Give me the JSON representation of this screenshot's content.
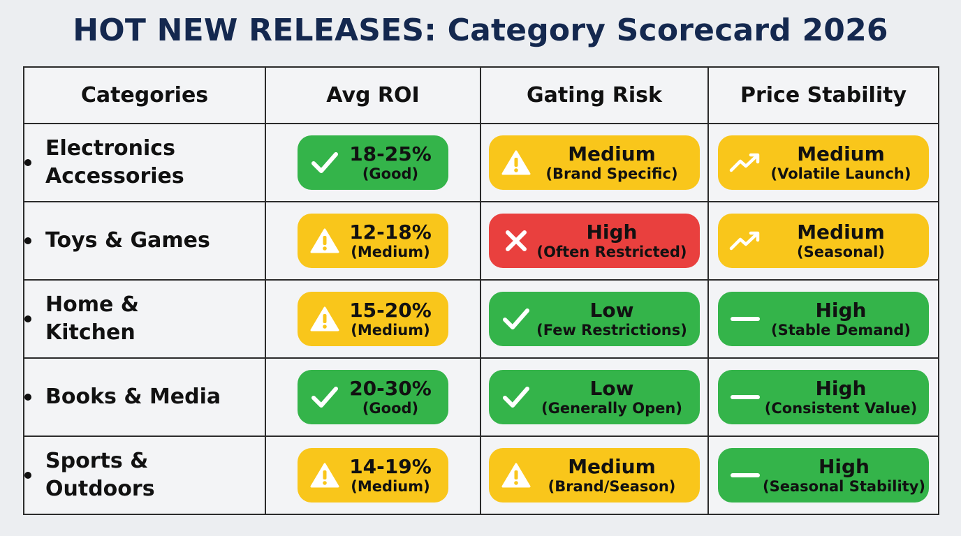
{
  "title": "HOT NEW RELEASES: Category Scorecard 2026",
  "colors": {
    "title": "#14284f",
    "good": "#34b44a",
    "medium": "#f9c61b",
    "high_risk": "#e9403e",
    "border": "#2b2b2b"
  },
  "chart_data": {
    "type": "table",
    "title": "HOT NEW RELEASES: Category Scorecard 2026",
    "columns": [
      "Categories",
      "Avg ROI",
      "Gating Risk",
      "Price Stability"
    ],
    "rows": [
      {
        "category": "Electronics Accessories",
        "category_lines": [
          "Electronics",
          "Accessories"
        ],
        "roi": {
          "value": "18-25%",
          "note": "(Good)",
          "status": "green",
          "icon": "check-icon"
        },
        "gating": {
          "value": "Medium",
          "note": "(Brand Specific)",
          "status": "yellow",
          "icon": "warning-icon"
        },
        "price": {
          "value": "Medium",
          "note": "(Volatile Launch)",
          "status": "yellow",
          "icon": "trend-up-icon"
        }
      },
      {
        "category": "Toys & Games",
        "category_lines": [
          "Toys & Games"
        ],
        "roi": {
          "value": "12-18%",
          "note": "(Medium)",
          "status": "yellow",
          "icon": "warning-icon"
        },
        "gating": {
          "value": "High",
          "note": "(Often Restricted)",
          "status": "red",
          "icon": "x-icon"
        },
        "price": {
          "value": "Medium",
          "note": "(Seasonal)",
          "status": "yellow",
          "icon": "trend-up-icon"
        }
      },
      {
        "category": "Home & Kitchen",
        "category_lines": [
          "Home &",
          "Kitchen"
        ],
        "roi": {
          "value": "15-20%",
          "note": "(Medium)",
          "status": "yellow",
          "icon": "warning-icon"
        },
        "gating": {
          "value": "Low",
          "note": "(Few Restrictions)",
          "status": "green",
          "icon": "check-icon"
        },
        "price": {
          "value": "High",
          "note": "(Stable Demand)",
          "status": "green",
          "icon": "dash-icon"
        }
      },
      {
        "category": "Books & Media",
        "category_lines": [
          "Books & Media"
        ],
        "roi": {
          "value": "20-30%",
          "note": "(Good)",
          "status": "green",
          "icon": "check-icon"
        },
        "gating": {
          "value": "Low",
          "note": "(Generally Open)",
          "status": "green",
          "icon": "check-icon"
        },
        "price": {
          "value": "High",
          "note": "(Consistent Value)",
          "status": "green",
          "icon": "dash-icon"
        }
      },
      {
        "category": "Sports & Outdoors",
        "category_lines": [
          "Sports &",
          "Outdoors"
        ],
        "roi": {
          "value": "14-19%",
          "note": "(Medium)",
          "status": "yellow",
          "icon": "warning-icon"
        },
        "gating": {
          "value": "Medium",
          "note": "(Brand/Season)",
          "status": "yellow",
          "icon": "warning-icon"
        },
        "price": {
          "value": "High",
          "note": "(Seasonal Stability)",
          "status": "green",
          "icon": "dash-icon"
        }
      }
    ]
  }
}
